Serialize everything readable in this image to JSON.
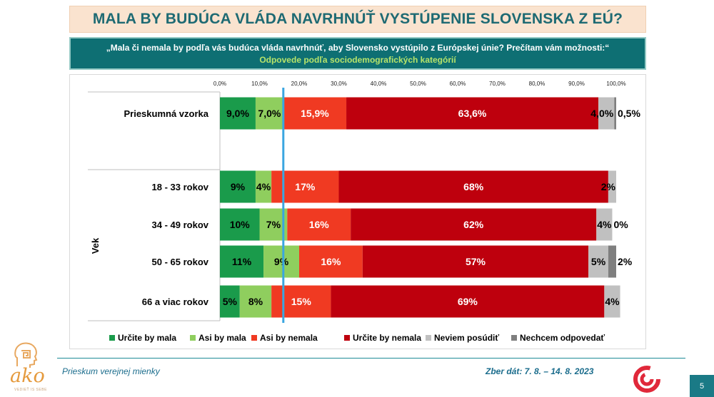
{
  "title": "MALA BY BUDÚCA VLÁDA NAVRHNÚŤ VYSTÚPENIE SLOVENSKA Z EÚ?",
  "question": "„Mala či nemala by podľa vás budúca vláda navrhnúť, aby Slovensko vystúpilo z Európskej únie? Prečítam vám možnosti:“",
  "subtitle": "Odpovede podľa sociodemografických kategórií",
  "footer": {
    "left": "Prieskum verejnej mienky",
    "right": "Zber dát: 7. 8. – 14. 8. 2023",
    "page": "5"
  },
  "logo": {
    "word": "ako",
    "tagline": "VEDIEŤ IS SEBE"
  },
  "colors": {
    "certainly_yes": "#1a9b4b",
    "rather_yes": "#8fce5e",
    "rather_no": "#f03a22",
    "certainly_no": "#be000d",
    "dont_know": "#c0c0c0",
    "refused": "#7f7f7f",
    "reference_line": "#3aa6e0",
    "title_text": "#1e6a73"
  },
  "chart_data": {
    "type": "bar",
    "orientation": "horizontal",
    "stacked": true,
    "xlim": [
      0,
      100
    ],
    "x_ticks": [
      "0,0%",
      "10,0%",
      "20,0%",
      "30,0%",
      "40,0%",
      "50,0%",
      "60,0%",
      "70,0%",
      "80,0%",
      "90,0%",
      "100,0%"
    ],
    "reference_line_x": 16,
    "group_label": "Vek",
    "legend_position": "bottom",
    "series_names": [
      "Určite by mala",
      "Asi by mala",
      "Asi by nemala",
      "Určite by nemala",
      "Neviem posúdiť",
      "Nechcem odpovedať"
    ],
    "rows": [
      {
        "category": "Prieskumná vzorka",
        "values": [
          9.0,
          7.0,
          15.9,
          63.6,
          4.0,
          0.5
        ],
        "labels": [
          "9,0%",
          "7,0%",
          "15,9%",
          "63,6%",
          "4,0%",
          "0,5%"
        ]
      },
      {
        "category": "18 - 33 rokov",
        "values": [
          9,
          4,
          17,
          68,
          2,
          0
        ],
        "labels": [
          "9%",
          "4%",
          "17%",
          "68%",
          "2%",
          ""
        ]
      },
      {
        "category": "34 - 49 rokov",
        "values": [
          10,
          7,
          16,
          62,
          4,
          0
        ],
        "labels": [
          "10%",
          "7%",
          "16%",
          "62%",
          "4%",
          "0%"
        ]
      },
      {
        "category": "50 - 65 rokov",
        "values": [
          11,
          9,
          16,
          57,
          5,
          2
        ],
        "labels": [
          "11%",
          "9%",
          "16%",
          "57%",
          "5%",
          "2%"
        ]
      },
      {
        "category": "66 a viac rokov",
        "values": [
          5,
          8,
          15,
          69,
          4,
          0
        ],
        "labels": [
          "5%",
          "8%",
          "15%",
          "69%",
          "4%",
          ""
        ]
      }
    ]
  }
}
